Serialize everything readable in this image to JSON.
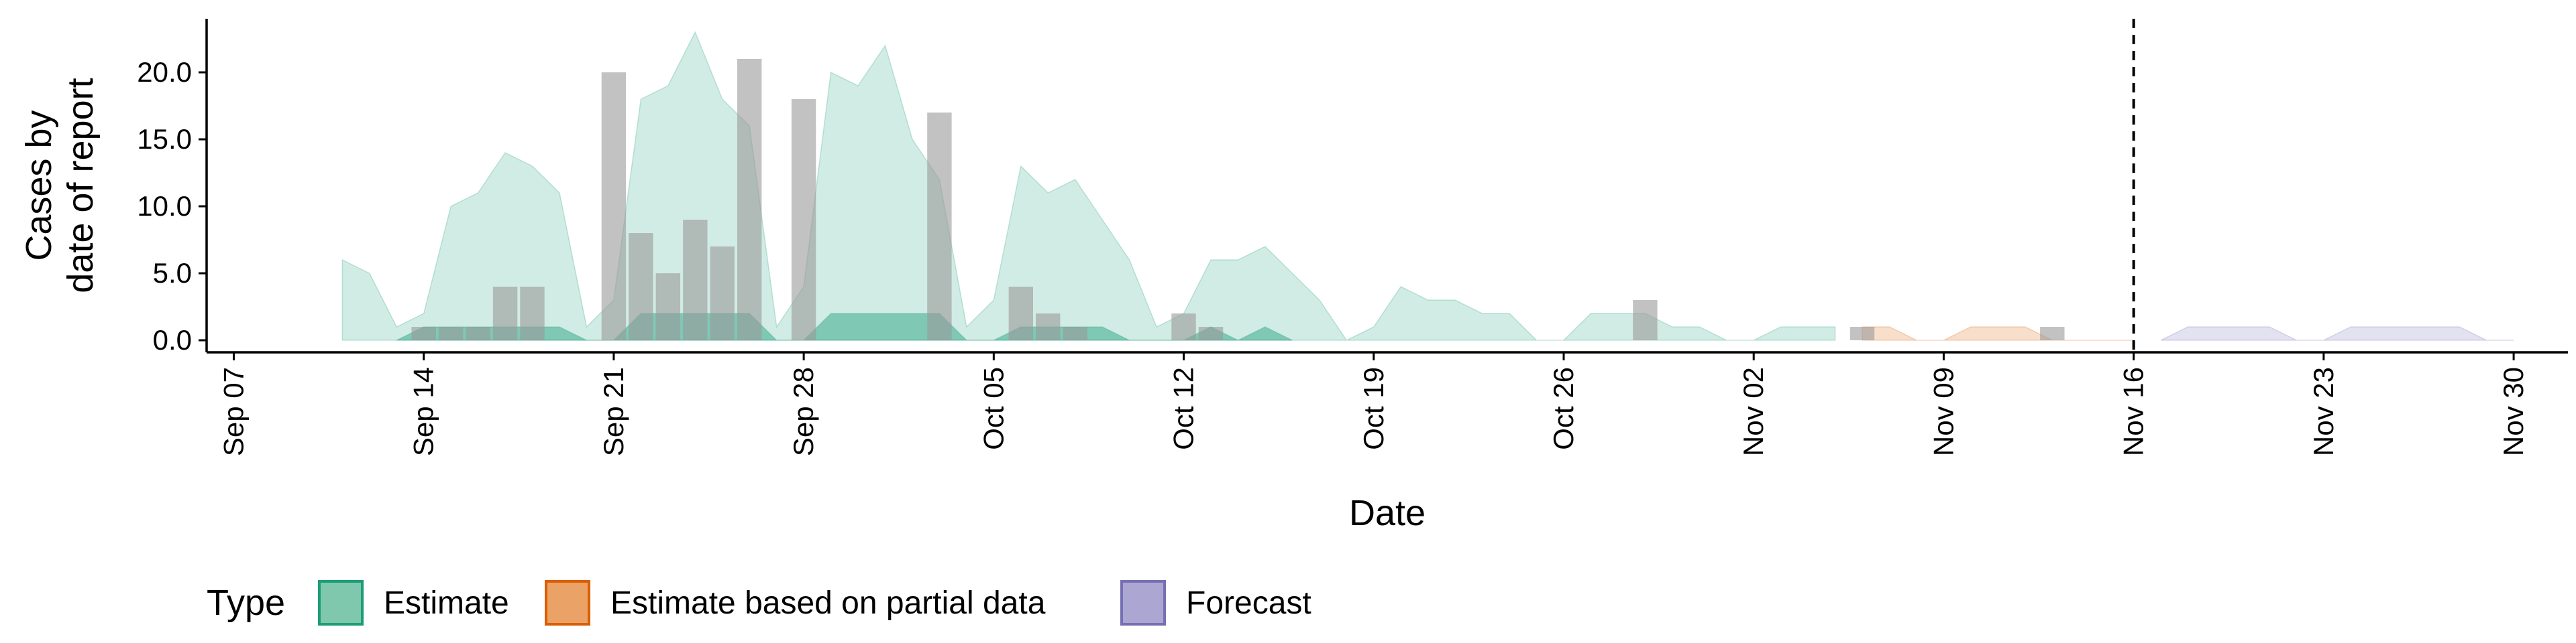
{
  "chart_data": {
    "type": "area",
    "title": "",
    "xlabel": "Date",
    "ylabel": [
      "Cases by",
      "date of report"
    ],
    "xlim": [
      "2020-09-06",
      "2020-12-02"
    ],
    "ylim": [
      -0.9,
      24.0
    ],
    "grid": false,
    "x_ticks": [
      "2020-09-07",
      "2020-09-14",
      "2020-09-21",
      "2020-09-28",
      "2020-10-05",
      "2020-10-12",
      "2020-10-19",
      "2020-10-26",
      "2020-11-02",
      "2020-11-09",
      "2020-11-16",
      "2020-11-23",
      "2020-11-30"
    ],
    "x_tick_labels": [
      "Sep 07",
      "Sep 14",
      "Sep 21",
      "Sep 28",
      "Oct 05",
      "Oct 12",
      "Oct 19",
      "Oct 26",
      "Nov 02",
      "Nov 09",
      "Nov 16",
      "Nov 23",
      "Nov 30"
    ],
    "y_ticks": [
      0,
      5,
      10,
      15,
      20
    ],
    "y_tick_labels": [
      "0.0",
      "5.0",
      "10.0",
      "15.0",
      "20.0"
    ],
    "reference_line": {
      "x": "2020-11-16",
      "style": "dashed",
      "color": "#000000"
    },
    "legend": {
      "title": "Type",
      "position": "bottom",
      "entries": [
        {
          "label": "Estimate",
          "fill": "#7fc8ae",
          "stroke": "#1b9e77"
        },
        {
          "label": "Estimate based on partial data",
          "fill": "#eba267",
          "stroke": "#d95f02"
        },
        {
          "label": "Forecast",
          "fill": "#aca7d2",
          "stroke": "#7570b3"
        }
      ]
    },
    "series": [
      {
        "name": "Estimate",
        "color": "#1b9e77",
        "bands": [
          {
            "opacity": 0.2,
            "dates": [
              "2020-09-11",
              "2020-09-12",
              "2020-09-13",
              "2020-09-14",
              "2020-09-15",
              "2020-09-16",
              "2020-09-17",
              "2020-09-18",
              "2020-09-19",
              "2020-09-20",
              "2020-09-21",
              "2020-09-22",
              "2020-09-23",
              "2020-09-24",
              "2020-09-25",
              "2020-09-26",
              "2020-09-27",
              "2020-09-28",
              "2020-09-29",
              "2020-09-30",
              "2020-10-01",
              "2020-10-02",
              "2020-10-03",
              "2020-10-04",
              "2020-10-05",
              "2020-10-06",
              "2020-10-07",
              "2020-10-08",
              "2020-10-09",
              "2020-10-10",
              "2020-10-11",
              "2020-10-12",
              "2020-10-13",
              "2020-10-14",
              "2020-10-15",
              "2020-10-16",
              "2020-10-17",
              "2020-10-18",
              "2020-10-19",
              "2020-10-20",
              "2020-10-21",
              "2020-10-22",
              "2020-10-23",
              "2020-10-24",
              "2020-10-25",
              "2020-10-26",
              "2020-10-27",
              "2020-10-28",
              "2020-10-29",
              "2020-10-30",
              "2020-10-31",
              "2020-11-01",
              "2020-11-02",
              "2020-11-03",
              "2020-11-04",
              "2020-11-05"
            ],
            "lower": [
              0,
              0,
              0,
              0,
              0,
              0,
              0,
              0,
              0,
              0,
              0,
              0,
              0,
              0,
              0,
              0,
              0,
              0,
              0,
              0,
              0,
              0,
              0,
              0,
              0,
              0,
              0,
              0,
              0,
              0,
              0,
              0,
              0,
              0,
              0,
              0,
              0,
              0,
              0,
              0,
              0,
              0,
              0,
              0,
              0,
              0,
              0,
              0,
              0,
              0,
              0,
              0,
              0,
              0,
              0,
              0
            ],
            "upper": [
              6,
              5,
              1,
              2,
              10,
              11,
              14,
              13,
              11,
              1,
              3,
              18,
              19,
              23,
              18,
              16,
              1,
              4,
              20,
              19,
              22,
              15,
              12,
              1,
              3,
              13,
              11,
              12,
              9,
              6,
              1,
              2,
              6,
              6,
              7,
              5,
              3,
              0,
              1,
              4,
              3,
              3,
              2,
              2,
              0,
              0,
              2,
              2,
              2,
              1,
              1,
              0,
              0,
              1,
              1,
              1
            ]
          },
          {
            "opacity": 0.45,
            "dates": [
              "2020-09-13",
              "2020-09-14",
              "2020-09-15",
              "2020-09-16",
              "2020-09-17",
              "2020-09-18",
              "2020-09-19",
              "2020-09-20",
              "2020-09-21",
              "2020-09-22",
              "2020-09-23",
              "2020-09-24",
              "2020-09-25",
              "2020-09-26",
              "2020-09-27",
              "2020-09-28",
              "2020-09-29",
              "2020-09-30",
              "2020-10-01",
              "2020-10-02",
              "2020-10-03",
              "2020-10-04",
              "2020-10-05",
              "2020-10-06",
              "2020-10-07",
              "2020-10-08",
              "2020-10-09",
              "2020-10-10",
              "2020-10-11",
              "2020-10-12",
              "2020-10-13",
              "2020-10-14",
              "2020-10-15",
              "2020-10-16"
            ],
            "lower": [
              0,
              0,
              0,
              0,
              0,
              0,
              0,
              0,
              0,
              0,
              0,
              0,
              0,
              0,
              0,
              0,
              0,
              0,
              0,
              0,
              0,
              0,
              0,
              0,
              0,
              0,
              0,
              0,
              0,
              0,
              0,
              0,
              0,
              0
            ],
            "upper": [
              0,
              1,
              1,
              1,
              1,
              1,
              1,
              0,
              0,
              2,
              2,
              2,
              2,
              2,
              0,
              0,
              2,
              2,
              2,
              2,
              2,
              0,
              0,
              1,
              1,
              1,
              1,
              0,
              0,
              0,
              1,
              0,
              1,
              0
            ]
          }
        ]
      },
      {
        "name": "Estimate based on partial data",
        "color": "#d95f02",
        "bands": [
          {
            "opacity": 0.2,
            "dates": [
              "2020-11-06",
              "2020-11-07",
              "2020-11-08",
              "2020-11-09",
              "2020-11-10",
              "2020-11-11",
              "2020-11-12",
              "2020-11-13",
              "2020-11-14",
              "2020-11-15",
              "2020-11-16"
            ],
            "lower": [
              0,
              0,
              0,
              0,
              0,
              0,
              0,
              0,
              0,
              0,
              0
            ],
            "upper": [
              1,
              1,
              0,
              0,
              1,
              1,
              1,
              0,
              0,
              0,
              0
            ]
          }
        ]
      },
      {
        "name": "Forecast",
        "color": "#7570b3",
        "bands": [
          {
            "opacity": 0.2,
            "dates": [
              "2020-11-17",
              "2020-11-18",
              "2020-11-19",
              "2020-11-20",
              "2020-11-21",
              "2020-11-22",
              "2020-11-23",
              "2020-11-24",
              "2020-11-25",
              "2020-11-26",
              "2020-11-27",
              "2020-11-28",
              "2020-11-29",
              "2020-11-30"
            ],
            "lower": [
              0,
              0,
              0,
              0,
              0,
              0,
              0,
              0,
              0,
              0,
              0,
              0,
              0,
              0
            ],
            "upper": [
              0,
              1,
              1,
              1,
              1,
              0,
              0,
              1,
              1,
              1,
              1,
              1,
              0,
              0
            ]
          }
        ]
      }
    ],
    "observed_bars": {
      "color": "#9a9a9a",
      "dates": [
        "2020-09-14",
        "2020-09-15",
        "2020-09-16",
        "2020-09-17",
        "2020-09-18",
        "2020-09-21",
        "2020-09-22",
        "2020-09-23",
        "2020-09-24",
        "2020-09-25",
        "2020-09-26",
        "2020-09-28",
        "2020-10-03",
        "2020-10-06",
        "2020-10-07",
        "2020-10-08",
        "2020-10-12",
        "2020-10-13",
        "2020-10-29",
        "2020-11-06",
        "2020-11-13"
      ],
      "values": [
        1,
        1,
        1,
        4,
        4,
        20,
        8,
        5,
        9,
        7,
        21,
        18,
        17,
        4,
        2,
        1,
        2,
        1,
        3,
        1,
        1
      ]
    }
  }
}
